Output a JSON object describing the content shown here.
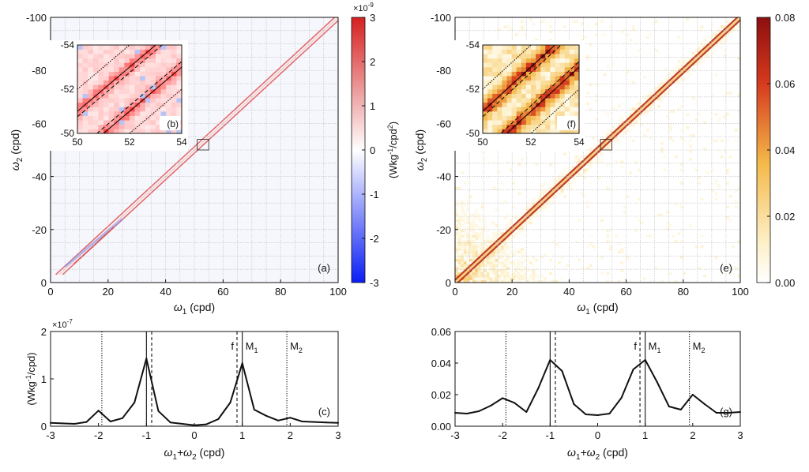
{
  "colors": {
    "negative": "#0a1ef5",
    "positive": "#d62020",
    "heat_low": "#ffffff",
    "heat_mid": "#f2a73a",
    "heat_high": "#8c0f0f",
    "grid": "#b9b9b9",
    "text": "#111111"
  },
  "chart_data": [
    {
      "id": "a",
      "type": "heatmap",
      "panel_label": "(a)",
      "xlabel_sym": "ω",
      "xlabel_sub": "1",
      "xlabel_unit": " (cpd)",
      "ylabel_sym": "ω",
      "ylabel_sub": "2",
      "ylabel_unit": " (cpd)",
      "x_range": [
        0,
        100
      ],
      "y_range": [
        0,
        -100
      ],
      "x_ticks": [
        "0",
        "20",
        "40",
        "60",
        "80",
        "100"
      ],
      "y_ticks": [
        "0",
        "-20",
        "-40",
        "-60",
        "-80",
        "-100"
      ],
      "grid": true,
      "description_lines": [
        {
          "offset": -1.0,
          "sign": "positive",
          "strength": 0.6
        },
        {
          "offset": 1.0,
          "sign": "positive",
          "strength": 0.6
        },
        {
          "offset": 0.0,
          "sign": "positive",
          "strength": 0.15
        }
      ],
      "inset": {
        "label": "(b)",
        "x_range": [
          50,
          54
        ],
        "y_range": [
          -50,
          -54
        ],
        "x_ticks": [
          "50",
          "52",
          "54"
        ],
        "y_ticks": [
          "-50",
          "-52",
          "-54"
        ]
      },
      "marker_box": {
        "x": [
          51,
          55
        ],
        "y": [
          -50,
          -54
        ]
      },
      "colorbar": {
        "scale_exponent": "×10",
        "scale_power": "-9",
        "min": -3,
        "max": 3,
        "ticks": [
          "3",
          "2",
          "1",
          "0",
          "-1",
          "-2",
          "-3"
        ],
        "label": "(Wkg",
        "label_sup1": "-1",
        "label_mid": "/cpd",
        "label_sup2": "2",
        "label_end": ")"
      }
    },
    {
      "id": "e",
      "type": "heatmap",
      "panel_label": "(e)",
      "xlabel_sym": "ω",
      "xlabel_sub": "1",
      "xlabel_unit": " (cpd)",
      "ylabel_sym": "ω",
      "ylabel_sub": "2",
      "ylabel_unit": " (cpd)",
      "x_range": [
        0,
        100
      ],
      "y_range": [
        0,
        -100
      ],
      "x_ticks": [
        "0",
        "20",
        "40",
        "60",
        "80",
        "100"
      ],
      "y_ticks": [
        "0",
        "-20",
        "-40",
        "-60",
        "-80",
        "-100"
      ],
      "grid": true,
      "inset": {
        "label": "(f)",
        "x_range": [
          50,
          54
        ],
        "y_range": [
          -50,
          -54
        ],
        "x_ticks": [
          "50",
          "52",
          "54"
        ],
        "y_ticks": [
          "-50",
          "-52",
          "-54"
        ]
      },
      "marker_box": {
        "x": [
          51,
          55
        ],
        "y": [
          -50,
          -54
        ]
      },
      "colorbar": {
        "min": 0,
        "max": 0.08,
        "ticks": [
          "0.08",
          "0.06",
          "0.04",
          "0.02",
          "0.00"
        ]
      }
    },
    {
      "id": "c",
      "type": "line",
      "panel_label": "(c)",
      "xlabel": "ω",
      "xlabel_sub1": "1",
      "xlabel_mid": "+ω",
      "xlabel_sub2": "2",
      "xlabel_unit": " (cpd)",
      "ylabel": "(Wkg",
      "ylabel_sup": "-1",
      "ylabel_end": "/cpd)",
      "scale_exponent": "×10",
      "scale_power": "-7",
      "x_range": [
        -3,
        3
      ],
      "y_range": [
        0,
        2
      ],
      "x_ticks": [
        "-3",
        "-2",
        "-1",
        "0",
        "1",
        "2",
        "3"
      ],
      "y_ticks": [
        "0",
        "1",
        "2"
      ],
      "x": [
        -3.0,
        -2.75,
        -2.5,
        -2.25,
        -2.0,
        -1.75,
        -1.5,
        -1.25,
        -1.0,
        -0.75,
        -0.5,
        -0.25,
        0.0,
        0.25,
        0.5,
        0.75,
        1.0,
        1.25,
        1.5,
        1.75,
        2.0,
        2.25,
        2.5,
        2.75,
        3.0
      ],
      "values": [
        0.07,
        0.06,
        0.05,
        0.09,
        0.33,
        0.1,
        0.17,
        0.5,
        1.43,
        0.32,
        0.08,
        0.05,
        0.02,
        0.04,
        0.15,
        0.5,
        1.33,
        0.35,
        0.22,
        0.12,
        0.18,
        0.1,
        0.09,
        0.08,
        0.07
      ],
      "vlines": [
        {
          "x": -1.93,
          "style": "dotted"
        },
        {
          "x": -1.0,
          "style": "solid"
        },
        {
          "x": -0.89,
          "style": "dashed"
        },
        {
          "x": 0.89,
          "style": "dashed"
        },
        {
          "x": 1.0,
          "style": "solid"
        },
        {
          "x": 1.93,
          "style": "dotted"
        }
      ],
      "annotations": [
        {
          "text": "f",
          "sub": "",
          "x": 0.89,
          "side": "left"
        },
        {
          "text": "M",
          "sub": "1",
          "x": 1.0,
          "side": "right"
        },
        {
          "text": "M",
          "sub": "2",
          "x": 1.93,
          "side": "right"
        }
      ]
    },
    {
      "id": "g",
      "type": "line",
      "panel_label": "(g)",
      "xlabel": "ω",
      "xlabel_sub1": "1",
      "xlabel_mid": "+ω",
      "xlabel_sub2": "2",
      "xlabel_unit": " (cpd)",
      "x_range": [
        -3,
        3
      ],
      "y_range": [
        0,
        0.06
      ],
      "x_ticks": [
        "-3",
        "-2",
        "-1",
        "0",
        "1",
        "2",
        "3"
      ],
      "y_ticks": [
        "0.00",
        "0.02",
        "0.04",
        "0.06"
      ],
      "x": [
        -3.0,
        -2.75,
        -2.5,
        -2.25,
        -2.0,
        -1.75,
        -1.5,
        -1.25,
        -1.0,
        -0.75,
        -0.5,
        -0.25,
        0.0,
        0.25,
        0.5,
        0.75,
        1.0,
        1.25,
        1.5,
        1.75,
        2.0,
        2.25,
        2.5,
        2.75,
        3.0
      ],
      "values": [
        0.0085,
        0.008,
        0.0095,
        0.013,
        0.0178,
        0.0148,
        0.009,
        0.024,
        0.042,
        0.035,
        0.014,
        0.0075,
        0.007,
        0.008,
        0.018,
        0.036,
        0.042,
        0.028,
        0.0125,
        0.0105,
        0.02,
        0.014,
        0.0085,
        0.0085,
        0.009
      ],
      "vlines": [
        {
          "x": -1.93,
          "style": "dotted"
        },
        {
          "x": -1.0,
          "style": "solid"
        },
        {
          "x": -0.89,
          "style": "dashed"
        },
        {
          "x": 0.89,
          "style": "dashed"
        },
        {
          "x": 1.0,
          "style": "solid"
        },
        {
          "x": 1.93,
          "style": "dotted"
        }
      ],
      "annotations": [
        {
          "text": "f",
          "sub": "",
          "x": 0.89,
          "side": "left"
        },
        {
          "text": "M",
          "sub": "1",
          "x": 1.0,
          "side": "right"
        },
        {
          "text": "M",
          "sub": "2",
          "x": 1.93,
          "side": "right"
        }
      ]
    }
  ]
}
